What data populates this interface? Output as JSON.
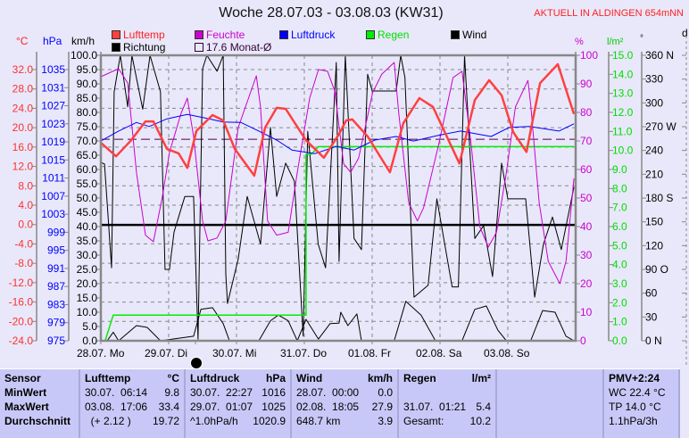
{
  "header": {
    "title": "Woche 28.07.03 - 03.08.03 (KW31)",
    "station": "AKTUELL IN ALDINGEN 654mNN"
  },
  "units": {
    "temp": "°C",
    "pressure": "hPa",
    "wind": "km/h",
    "humidity": "%",
    "rain": "l/m²",
    "direction": "°",
    "d": "d"
  },
  "legend": [
    {
      "label": "Lufttemp",
      "color": "#ff4040",
      "text_color": "#ff2020"
    },
    {
      "label": "Feuchte",
      "color": "#cc00cc",
      "text_color": "#cc00cc"
    },
    {
      "label": "Luftdruck",
      "color": "#0000ff",
      "text_color": "#0000ff"
    },
    {
      "label": "Regen",
      "color": "#00ee00",
      "text_color": "#00dd00"
    },
    {
      "label": "Wind",
      "color": "#000000",
      "text_color": "#000000"
    },
    {
      "label": "Richtung",
      "color": "#000000",
      "text_color": "#000000"
    },
    {
      "label": "17.6 Monat-Ø",
      "color": "#e8e8fa",
      "text_color": "#330033"
    }
  ],
  "chart_data": {
    "type": "line",
    "title": "Woche 28.07.03 - 03.08.03 (KW31)",
    "x_unit": "hours since 28.07. 00:00",
    "xlim": [
      0,
      168
    ],
    "x_tick_labels": [
      "28.07. Mo",
      "29.07. Di",
      "30.07. Mi",
      "31.07. Do",
      "01.08. Fr",
      "02.08. Sa",
      "03.08. So"
    ],
    "grid": true,
    "axes": {
      "temp": {
        "ticks": [
          "32.0",
          "28.0",
          "24.0",
          "20.0",
          "16.0",
          "12.0",
          "8.0",
          "4.0",
          "0.0",
          "-4.0",
          "-8.0",
          "-12.0",
          "-16.0",
          "-20.0",
          "-24.0"
        ],
        "range": [
          -24,
          32
        ],
        "color": "#ff3030"
      },
      "pressure": {
        "ticks": [
          "1035",
          "1031",
          "1027",
          "1023",
          "1019",
          "1015",
          "1011",
          "1007",
          "1003",
          "999",
          "995",
          "991",
          "987",
          "983",
          "979",
          "975"
        ],
        "range": [
          975,
          1035
        ],
        "color": "#0000ff"
      },
      "wind": {
        "ticks": [
          "100.0",
          "95.0",
          "90.0",
          "85.0",
          "80.0",
          "75.0",
          "70.0",
          "65.0",
          "60.0",
          "55.0",
          "50.0",
          "45.0",
          "40.0",
          "35.0",
          "30.0",
          "25.0",
          "20.0",
          "15.0",
          "10.0",
          "5.0",
          "0.0"
        ],
        "range": [
          0,
          100
        ],
        "color": "#000000"
      },
      "humidity": {
        "ticks": [
          "100",
          "90",
          "80",
          "70",
          "60",
          "50",
          "40",
          "30",
          "20",
          "10",
          "0"
        ],
        "range": [
          0,
          100
        ],
        "color": "#cc00cc"
      },
      "rain": {
        "ticks": [
          "15.0",
          "14.0",
          "13.0",
          "12.0",
          "11.0",
          "10.0",
          "9.0",
          "8.0",
          "7.0",
          "6.0",
          "5.0",
          "4.0",
          "3.0",
          "2.0",
          "1.0",
          "0.0"
        ],
        "range": [
          0,
          15
        ],
        "color": "#00dd00"
      },
      "direction": {
        "ticks": [
          "360 N",
          "330",
          "300",
          "270 W",
          "240",
          "210",
          "180 S",
          "150",
          "120",
          "90  O",
          "60",
          "30",
          "0   N"
        ],
        "range": [
          0,
          360
        ],
        "color": "#000000"
      }
    },
    "monthly_mean_temp": 17.6,
    "reference_line_kmh": 40.6,
    "series": [
      {
        "name": "Lufttemp",
        "axis": "temp",
        "color": "#ff4040",
        "width": 2.5,
        "x": [
          0,
          5.4,
          10.7,
          15.8,
          18.6,
          23.4,
          27.5,
          30.6,
          33.8,
          39.5,
          43.3,
          47.4,
          54.3,
          58.1,
          62.2,
          65.4,
          72.6,
          78.9,
          84.3,
          86.8,
          89.0,
          94.4,
          102.3,
          107.0,
          112.7,
          117.5,
          126.9,
          132.3,
          137.4,
          141.8,
          145.9,
          150.6,
          155.4,
          161.7,
          167.4
        ],
        "y": [
          16.9,
          14.1,
          17.4,
          21.3,
          21.3,
          15.6,
          14.7,
          11.7,
          19.3,
          22.6,
          21.5,
          15.6,
          10.1,
          20.0,
          24.1,
          23.9,
          17.4,
          13.8,
          18.7,
          21.5,
          21.7,
          18.2,
          10.8,
          20.9,
          26.1,
          24.3,
          12.6,
          25.7,
          29.8,
          26.7,
          19.1,
          15.0,
          29.2,
          33.1,
          22.8
        ]
      },
      {
        "name": "Feuchte",
        "axis": "humidity",
        "color": "#cc00cc",
        "width": 1,
        "x": [
          0,
          6.3,
          9.5,
          12.6,
          15.8,
          18.6,
          21.8,
          24.3,
          28.4,
          30.6,
          32.8,
          36.0,
          37.9,
          41.1,
          44.2,
          48.6,
          55.0,
          56.5,
          59.0,
          62.2,
          66.3,
          69.5,
          73.9,
          77.0,
          80.2,
          83.3,
          82.7,
          85.9,
          88.4,
          91.2,
          96.2,
          99.4,
          103.8,
          105.4,
          108.9,
          112.0,
          114.2,
          119.6,
          124.6,
          127.8,
          131.0,
          134.1,
          137.1,
          140.0,
          143.5,
          146.7,
          151.1,
          152.1,
          155.1,
          158.3,
          162.4,
          164.6,
          167.4
        ],
        "y": [
          92.5,
          95.3,
          90.3,
          59,
          37,
          34.7,
          50.6,
          66,
          79.7,
          85,
          71.6,
          42,
          35,
          36,
          42,
          74.7,
          92.8,
          81.9,
          42,
          37,
          38,
          59,
          85,
          95,
          94.4,
          86,
          88,
          62,
          59,
          64,
          87,
          93.4,
          97.5,
          79.7,
          48.4,
          42,
          46.6,
          69,
          92.2,
          94.4,
          69,
          40,
          32.8,
          38,
          59,
          81.9,
          91.2,
          82.8,
          48.4,
          27.8,
          20,
          27.8,
          56.9
        ]
      },
      {
        "name": "Luftdruck",
        "axis": "pressure",
        "color": "#0000ff",
        "width": 1,
        "x": [
          0,
          6.3,
          12.6,
          17.1,
          23.4,
          30.6,
          36.9,
          43.3,
          49.6,
          55.9,
          62.2,
          67.6,
          75.8,
          83.3,
          89.6,
          96.9,
          104.5,
          110.6,
          119.1,
          127.3,
          138.1,
          144.4,
          151.6,
          162.1,
          167.4
        ],
        "y": [
          1019.2,
          1021.4,
          1023.3,
          1022.4,
          1024.1,
          1025.1,
          1024.3,
          1023.4,
          1023.3,
          1021.4,
          1019.4,
          1017.2,
          1016.4,
          1018,
          1017.2,
          1019.4,
          1020.2,
          1019.2,
          1020.4,
          1021.4,
          1020.2,
          1022.2,
          1022.4,
          1021.4,
          1023
        ]
      },
      {
        "name": "Regen",
        "axis": "rain",
        "color": "#00ee00",
        "width": 1.5,
        "step": true,
        "x": [
          0,
          1.5,
          4.4,
          72.6,
          72.6,
          74.5,
          77.0,
          167.4
        ],
        "y": [
          0,
          0,
          1.35,
          1.35,
          9.8,
          9.8,
          10.2,
          10.2
        ]
      },
      {
        "name": "Wind",
        "axis": "wind",
        "color": "#000000",
        "width": 1,
        "x": [
          0,
          2.2,
          4.4,
          6.3,
          12.6,
          16.4,
          21.1,
          32.8,
          35.4,
          39.5,
          43.3,
          45.5,
          55.9,
          60.0,
          62.8,
          66.3,
          69.5,
          72.6,
          77.0,
          81.1,
          84.3,
          84.9,
          87.4,
          90.6,
          92.2,
          103.8,
          107.9,
          113.3,
          118.4,
          127.8,
          132.3,
          136.4,
          140.5,
          143.5,
          152.1,
          156.3,
          160.7,
          164.6,
          167.4
        ],
        "y": [
          0,
          0,
          3,
          0,
          5.3,
          4.7,
          0,
          1.6,
          11,
          11.6,
          6,
          0,
          0,
          7,
          9,
          7,
          0,
          7.5,
          0.6,
          6,
          6.2,
          10,
          5.3,
          9.4,
          0,
          0,
          13.8,
          9,
          0,
          0,
          11,
          12.2,
          3.7,
          0,
          0,
          10.6,
          10,
          1.6,
          0
        ]
      },
      {
        "name": "Richtung",
        "axis": "direction",
        "color": "#000000",
        "width": 1,
        "x": [
          0,
          1.3,
          3.8,
          4.7,
          6.9,
          9.5,
          11.0,
          14.8,
          17.4,
          21.1,
          22.7,
          24.3,
          25.9,
          29.7,
          32.8,
          34.4,
          36.0,
          37.5,
          41.1,
          43.3,
          44.2,
          44.8,
          48.6,
          51.8,
          56.5,
          60.0,
          62.2,
          65.4,
          68.5,
          71.6,
          73.2,
          76.9,
          79.5,
          83.3,
          84.3,
          86.5,
          89.6,
          92.2,
          94.4,
          96.0,
          104.5,
          106.1,
          107.6,
          110.8,
          115.8,
          118.9,
          124.3,
          126.5,
          128.7,
          132.3,
          135.4,
          138.6,
          141.8,
          144.0,
          150.3,
          153.5,
          156.6,
          159.8,
          162.9,
          167.4
        ],
        "y": [
          225,
          223,
          92,
          314,
          360,
          295,
          360,
          292,
          360,
          314,
          90,
          90,
          137,
          182,
          182,
          2,
          343,
          360,
          340,
          360,
          84,
          47,
          103,
          182,
          122,
          269,
          182,
          224,
          201,
          6,
          264,
          122,
          92,
          351,
          100,
          360,
          129,
          115,
          336,
          315,
          315,
          360,
          332,
          55,
          70,
          179,
          68,
          68,
          360,
          129,
          145,
          81,
          224,
          179,
          179,
          55,
          122,
          156,
          115,
          194
        ]
      }
    ]
  },
  "table": {
    "columns": [
      {
        "head": "Sensor",
        "unit": "",
        "rows": [
          [
            "MinWert",
            ""
          ],
          [
            "MaxWert",
            ""
          ],
          [
            "Durchschnitt",
            ""
          ]
        ],
        "bold_rows": true
      },
      {
        "head": "Lufttemp",
        "unit": "°C",
        "rows": [
          [
            "30.07.  06:14",
            "9.8"
          ],
          [
            "03.08.  17:06",
            "33.4"
          ],
          [
            "  (+ 2.12 )",
            "19.72"
          ]
        ]
      },
      {
        "head": "Luftdruck",
        "unit": "hPa",
        "rows": [
          [
            "30.07.  22:27",
            "1016"
          ],
          [
            "29.07.  01:07",
            "1025"
          ],
          [
            "^1.0hPa/h",
            "1020.9"
          ]
        ]
      },
      {
        "head": "Wind",
        "unit": "km/h",
        "rows": [
          [
            "28.07.  00:00",
            "0.0"
          ],
          [
            "02.08.  18:05",
            "27.9"
          ],
          [
            "648.7 km",
            "3.9"
          ]
        ]
      },
      {
        "head": "Regen",
        "unit": "l/m²",
        "rows": [
          [
            "",
            ""
          ],
          [
            "31.07.  01:21",
            "5.4"
          ],
          [
            "Gesamt:",
            "10.2"
          ]
        ]
      },
      {
        "head": "",
        "unit": "",
        "rows": [
          [
            "",
            ""
          ],
          [
            "",
            ""
          ],
          [
            "",
            ""
          ]
        ]
      },
      {
        "head": "PMV+2:24",
        "unit": "",
        "rows": [
          [
            "WC 22.4 °C",
            ""
          ],
          [
            "TP 14.0 °C",
            ""
          ],
          [
            "1.1hPa/3h",
            ""
          ]
        ]
      }
    ]
  }
}
